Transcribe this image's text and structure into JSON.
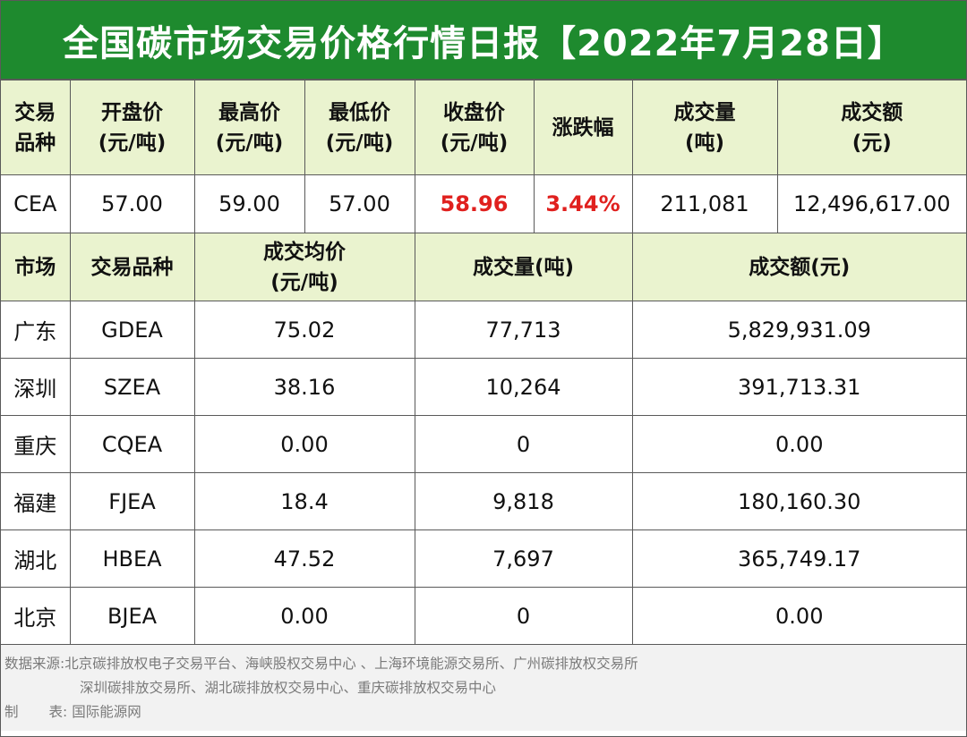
{
  "title": "全国碳市场交易价格行情日报【2022年7月28日】",
  "cea_header": {
    "variety": [
      "交易",
      "品种"
    ],
    "open": [
      "开盘价",
      "(元/吨)"
    ],
    "high": [
      "最高价",
      "(元/吨)"
    ],
    "low": [
      "最低价",
      "(元/吨)"
    ],
    "close": [
      "收盘价",
      "(元/吨)"
    ],
    "change": "涨跌幅",
    "volume": [
      "成交量",
      "(吨)"
    ],
    "amount": [
      "成交额",
      "(元)"
    ]
  },
  "cea_row": {
    "variety": "CEA",
    "open": "57.00",
    "high": "59.00",
    "low": "57.00",
    "close": "58.96",
    "change": "3.44%",
    "volume": "211,081",
    "amount": "12,496,617.00"
  },
  "regional_header": {
    "market": "市场",
    "variety": "交易品种",
    "avg_price": [
      "成交均价",
      "(元/吨)"
    ],
    "volume": "成交量(吨)",
    "amount": "成交额(元)"
  },
  "regional_rows": [
    {
      "market": "广东",
      "variety": "GDEA",
      "avg_price": "75.02",
      "volume": "77,713",
      "amount": "5,829,931.09"
    },
    {
      "market": "深圳",
      "variety": "SZEA",
      "avg_price": "38.16",
      "volume": "10,264",
      "amount": "391,713.31"
    },
    {
      "market": "重庆",
      "variety": "CQEA",
      "avg_price": "0.00",
      "volume": "0",
      "amount": "0.00"
    },
    {
      "market": "福建",
      "variety": "FJEA",
      "avg_price": "18.4",
      "volume": "9,818",
      "amount": "180,160.30"
    },
    {
      "market": "湖北",
      "variety": "HBEA",
      "avg_price": "47.52",
      "volume": "7,697",
      "amount": "365,749.17"
    },
    {
      "market": "北京",
      "variety": "BJEA",
      "avg_price": "0.00",
      "volume": "0",
      "amount": "0.00"
    }
  ],
  "footer": {
    "source_label": "数据来源:",
    "source_line1": "北京碳排放权电子交易平台、海峡股权交易中心 、上海环境能源交易所、广州碳排放权交易所",
    "source_line2": "深圳碳排放交易所、湖北碳排放权交易中心、重庆碳排放权交易中心",
    "maker_label_1": "制",
    "maker_label_2": "表:",
    "maker_value": "国际能源网"
  },
  "colors": {
    "title_bg": "#1e8a2e",
    "header_bg": "#eaf3cf",
    "highlight": "#e0201e",
    "footer_bg": "#f2f2f2"
  }
}
